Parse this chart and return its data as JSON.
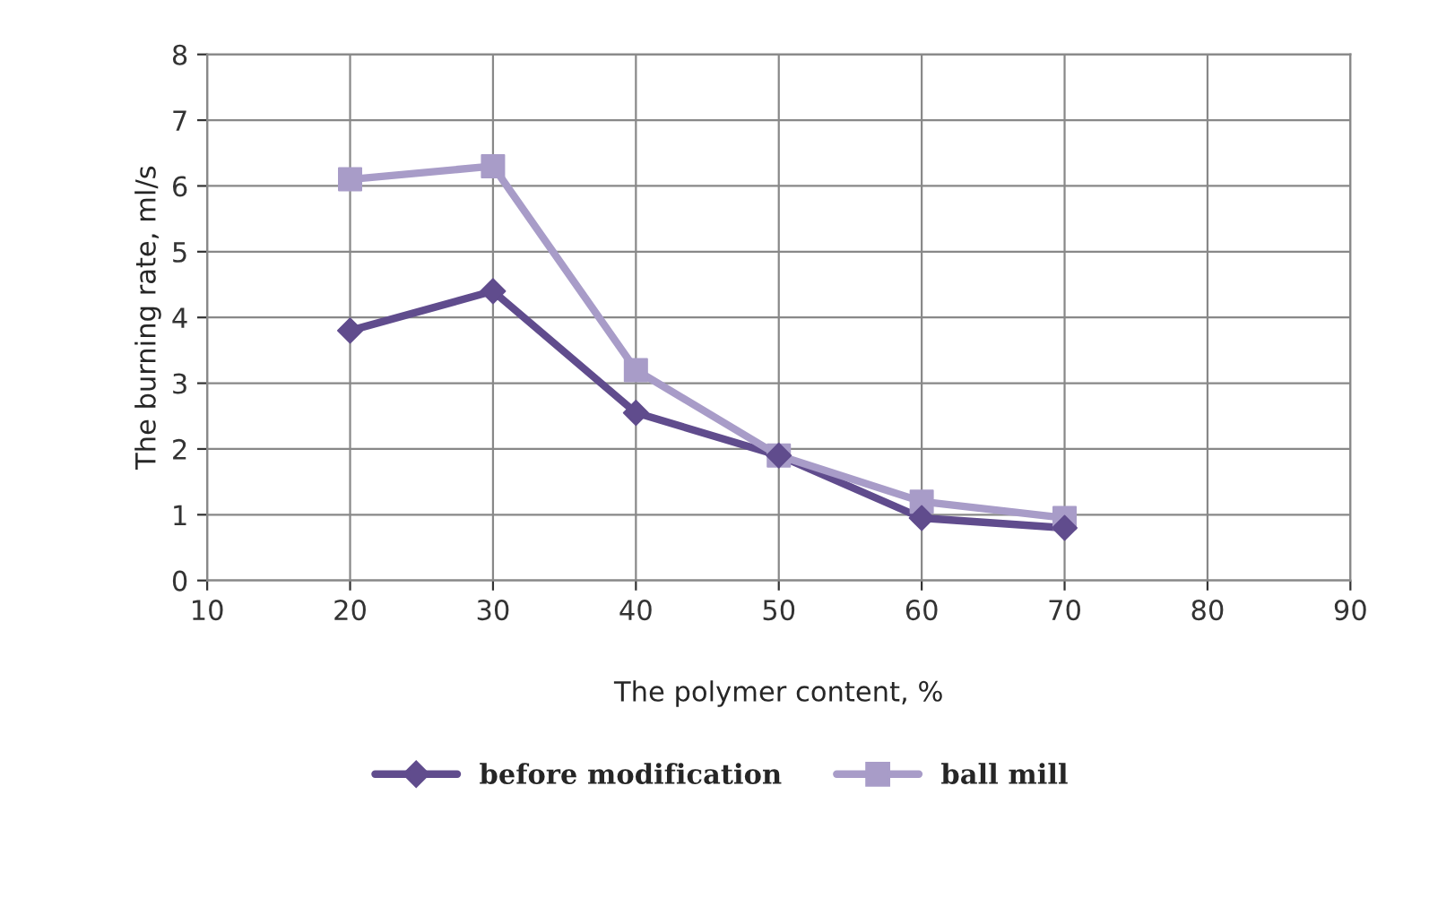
{
  "chart_data": {
    "type": "line",
    "xlabel": "The polymer content, %",
    "ylabel": "The burning rate, ml/s",
    "x": [
      20,
      30,
      40,
      50,
      60,
      70
    ],
    "series": [
      {
        "name": "before modification",
        "color": "#604c8d",
        "marker": "diamond",
        "values": [
          3.8,
          4.4,
          2.55,
          1.9,
          0.95,
          0.8
        ]
      },
      {
        "name": "ball mill",
        "color": "#a89cc8",
        "marker": "square",
        "values": [
          6.1,
          6.3,
          3.2,
          1.9,
          1.2,
          0.95
        ]
      }
    ],
    "xlim": [
      10,
      90
    ],
    "xticks": [
      10,
      20,
      30,
      40,
      50,
      60,
      70,
      80,
      90
    ],
    "ylim": [
      0,
      8
    ],
    "yticks": [
      0,
      1,
      2,
      3,
      4,
      5,
      6,
      7,
      8
    ],
    "grid": true,
    "legend": "bottom",
    "line_style": "solid"
  }
}
